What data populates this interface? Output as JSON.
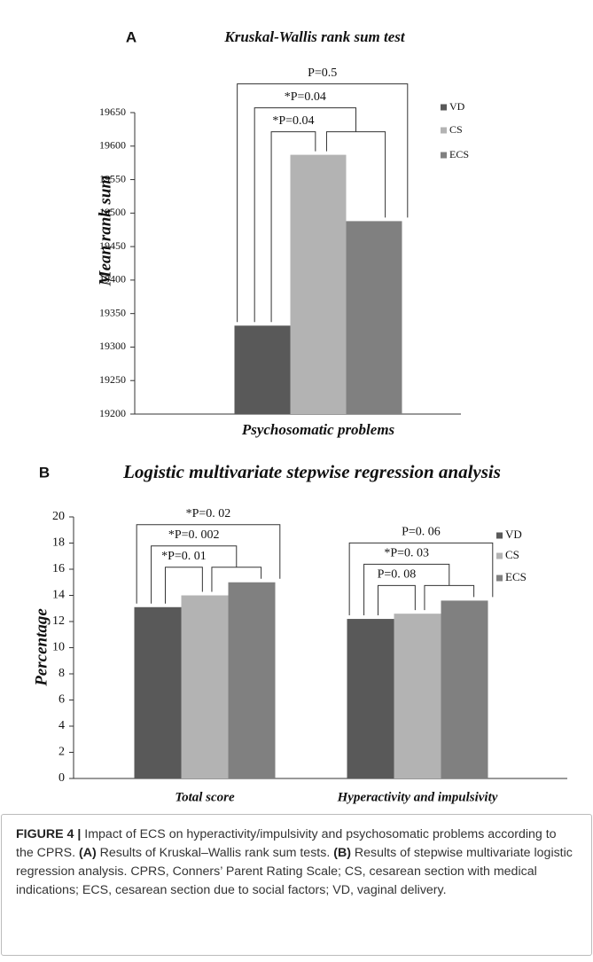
{
  "chart_data": [
    {
      "type": "bar",
      "panel": "A",
      "title": "Kruskal-Wallis rank sum test",
      "y_label": "Mean rank sum",
      "categories": [
        "Psychosomatic problems"
      ],
      "series": [
        {
          "name": "VD",
          "color": "#595959",
          "values": [
            19332
          ]
        },
        {
          "name": "CS",
          "color": "#b3b3b3",
          "values": [
            19587
          ]
        },
        {
          "name": "ECS",
          "color": "#808080",
          "values": [
            19488
          ]
        }
      ],
      "ylim": [
        19200,
        19650
      ],
      "yticks": [
        19200,
        19250,
        19300,
        19350,
        19400,
        19450,
        19500,
        19550,
        19600,
        19650
      ],
      "annotations": [
        [
          "P=0.5",
          "*P=0.04",
          "*P=0.04"
        ]
      ],
      "legend": "right"
    },
    {
      "type": "bar",
      "panel": "B",
      "title": "Logistic multivariate stepwise regression analysis",
      "y_label": "Percentage",
      "categories": [
        "Total score",
        "Hyperactivity and impulsivity"
      ],
      "series": [
        {
          "name": "VD",
          "color": "#595959",
          "values": [
            13.1,
            12.2
          ]
        },
        {
          "name": "CS",
          "color": "#b3b3b3",
          "values": [
            14.0,
            12.6
          ]
        },
        {
          "name": "ECS",
          "color": "#808080",
          "values": [
            15.0,
            13.6
          ]
        }
      ],
      "ylim": [
        0,
        20
      ],
      "yticks": [
        0,
        2,
        4,
        6,
        8,
        10,
        12,
        14,
        16,
        18,
        20
      ],
      "annotations": [
        [
          "*P=0. 02",
          "*P=0. 002",
          "*P=0. 01"
        ],
        [
          "P=0. 06",
          "*P=0. 03",
          "P=0. 08"
        ]
      ],
      "legend": "right"
    }
  ],
  "caption": [
    {
      "text": "FIGURE 4 |",
      "bold": true
    },
    {
      "text": " Impact of ECS on hyperactivity/impulsivity and psychosomatic problems according to the CPRS. ",
      "bold": false
    },
    {
      "text": "(A)",
      "bold": true
    },
    {
      "text": " Results of Kruskal–Wallis rank sum tests. ",
      "bold": false
    },
    {
      "text": "(B)",
      "bold": true
    },
    {
      "text": " Results of stepwise multivariate logistic regression analysis. CPRS, Conners’ Parent Rating Scale; CS, cesarean section with medical indications; ECS, cesarean section due to social factors; VD, vaginal delivery.",
      "bold": false
    }
  ]
}
